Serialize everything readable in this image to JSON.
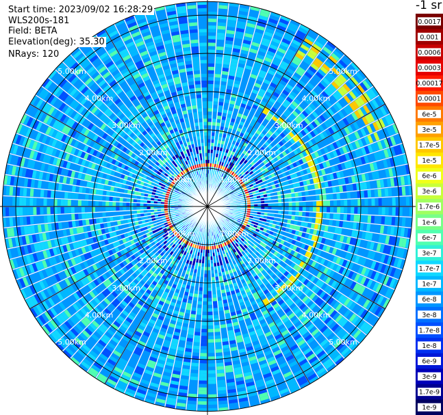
{
  "info": {
    "start_time": "Start time: 2023/09/02 16:28:29",
    "instrument": "WLS200s-181",
    "field": "Field: BETA",
    "elevation": "Elevation(deg): 35.30",
    "nrays": "NRays: 120"
  },
  "colorbar": {
    "title": "-1 sr",
    "labels": [
      "0.0017",
      "0.001",
      "0.0006",
      "0.0003",
      "0.00017",
      "0.0001",
      "6e-5",
      "3e-5",
      "1.7e-5",
      "1e-5",
      "6e-6",
      "3e-6",
      "1.7e-6",
      "1e-6",
      "6e-7",
      "3e-7",
      "1.7e-7",
      "1e-7",
      "6e-8",
      "3e-8",
      "1.7e-8",
      "1e-8",
      "6e-9",
      "3e-9",
      "1.7e-9",
      "1e-9"
    ],
    "colors": [
      "#7a0000",
      "#a00000",
      "#c80000",
      "#e60000",
      "#ff1a00",
      "#ff4a00",
      "#ff7a00",
      "#ffa000",
      "#ffc800",
      "#ffe600",
      "#f0ff1a",
      "#c8ff3a",
      "#a0ff60",
      "#78ff88",
      "#50ffb0",
      "#30f0d8",
      "#10d8ff",
      "#00b8ff",
      "#0096ff",
      "#0070ff",
      "#0050ff",
      "#0030f0",
      "#0018d8",
      "#0000b8",
      "#000090",
      "#000060"
    ]
  },
  "chart_data": {
    "type": "heatmap",
    "projection": "polar (PPI scan)",
    "n_rays": 120,
    "range_rings_km": [
      {
        "value": 1,
        "label": "1.00km"
      },
      {
        "value": 2,
        "label": "2.00km"
      },
      {
        "value": 3,
        "label": "3.00km"
      },
      {
        "value": 4,
        "label": "4.00km"
      },
      {
        "value": 5,
        "label": "5.00km"
      }
    ],
    "max_range_km": 5.35,
    "field": "BETA",
    "units": "-1 sr",
    "scale": "log",
    "value_range": [
      1e-09,
      0.0017
    ],
    "features": [
      {
        "description": "strong backscatter ring",
        "range_km": [
          0.9,
          1.1
        ],
        "level": "0.0017"
      },
      {
        "description": "moderate ring band",
        "range_km": [
          2.85,
          2.95
        ],
        "level": "1e-5"
      },
      {
        "description": "background",
        "level": "3e-8 to 1e-7"
      }
    ]
  }
}
